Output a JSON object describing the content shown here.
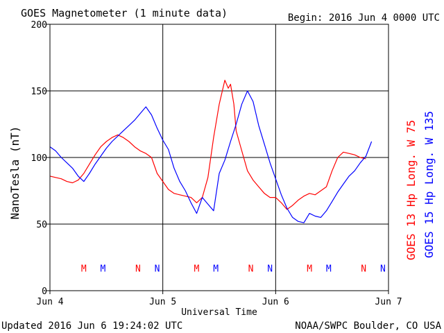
{
  "colors": {
    "goes13": "#ff0000",
    "goes15": "#0000ff",
    "axis": "#000000"
  },
  "chart_data": {
    "type": "line",
    "title": "GOES Magnetometer (1 minute data)",
    "begin_label": "Begin:  2016 Jun 4 0000 UTC",
    "xlabel": "Universal Time",
    "ylabel": "NanoTesla (nT)",
    "ylim": [
      0,
      200
    ],
    "yticks": [
      0,
      50,
      100,
      150,
      200
    ],
    "xlim_days": [
      0,
      3
    ],
    "xticks": [
      {
        "day": 0,
        "label": "Jun 4"
      },
      {
        "day": 1,
        "label": "Jun 5"
      },
      {
        "day": 2,
        "label": "Jun 6"
      },
      {
        "day": 3,
        "label": "Jun 7"
      }
    ],
    "grid": true,
    "legend": "right-vertical",
    "series": [
      {
        "name": "GOES 13 Hp  Long. W 75",
        "color": "#ff0000",
        "x": [
          0,
          0.05,
          0.1,
          0.15,
          0.2,
          0.25,
          0.3,
          0.35,
          0.4,
          0.45,
          0.5,
          0.55,
          0.6,
          0.65,
          0.7,
          0.75,
          0.8,
          0.85,
          0.9,
          0.95,
          1.0,
          1.05,
          1.1,
          1.15,
          1.2,
          1.25,
          1.3,
          1.35,
          1.4,
          1.45,
          1.5,
          1.55,
          1.58,
          1.6,
          1.63,
          1.65,
          1.7,
          1.75,
          1.8,
          1.85,
          1.9,
          1.95,
          2.0,
          2.05,
          2.1,
          2.15,
          2.2,
          2.25,
          2.3,
          2.35,
          2.4,
          2.45,
          2.5,
          2.55,
          2.6,
          2.65,
          2.7,
          2.75,
          2.8
        ],
        "y": [
          86,
          85,
          84,
          82,
          81,
          83,
          88,
          95,
          102,
          108,
          112,
          115,
          117,
          115,
          112,
          108,
          105,
          103,
          100,
          88,
          82,
          76,
          73,
          72,
          71,
          70,
          66,
          70,
          85,
          115,
          140,
          158,
          152,
          155,
          140,
          120,
          105,
          90,
          83,
          78,
          73,
          70,
          70,
          66,
          61,
          64,
          68,
          71,
          73,
          72,
          75,
          78,
          90,
          100,
          104,
          103,
          102,
          100,
          99
        ]
      },
      {
        "name": "GOES 15 Hp  Long. W 135",
        "color": "#0000ff",
        "x": [
          0,
          0.05,
          0.1,
          0.15,
          0.2,
          0.25,
          0.3,
          0.35,
          0.4,
          0.45,
          0.5,
          0.55,
          0.6,
          0.65,
          0.7,
          0.75,
          0.8,
          0.85,
          0.9,
          0.95,
          1.0,
          1.05,
          1.1,
          1.15,
          1.2,
          1.25,
          1.3,
          1.35,
          1.4,
          1.45,
          1.5,
          1.55,
          1.6,
          1.65,
          1.7,
          1.75,
          1.8,
          1.85,
          1.9,
          1.95,
          2.0,
          2.05,
          2.1,
          2.15,
          2.2,
          2.25,
          2.3,
          2.35,
          2.4,
          2.45,
          2.5,
          2.55,
          2.6,
          2.65,
          2.7,
          2.75,
          2.8,
          2.85
        ],
        "y": [
          108,
          105,
          100,
          96,
          92,
          86,
          82,
          88,
          95,
          101,
          107,
          112,
          116,
          120,
          124,
          128,
          133,
          138,
          132,
          122,
          113,
          106,
          92,
          82,
          75,
          66,
          58,
          70,
          65,
          60,
          88,
          98,
          112,
          125,
          140,
          150,
          142,
          124,
          110,
          96,
          84,
          72,
          62,
          55,
          52,
          51,
          58,
          56,
          55,
          60,
          67,
          74,
          80,
          86,
          90,
          96,
          101,
          112
        ]
      }
    ],
    "markers": [
      {
        "day": 0.3,
        "label": "M",
        "color": "#ff0000"
      },
      {
        "day": 0.47,
        "label": "M",
        "color": "#0000ff"
      },
      {
        "day": 0.78,
        "label": "N",
        "color": "#ff0000"
      },
      {
        "day": 0.95,
        "label": "N",
        "color": "#0000ff"
      },
      {
        "day": 1.3,
        "label": "M",
        "color": "#ff0000"
      },
      {
        "day": 1.47,
        "label": "M",
        "color": "#0000ff"
      },
      {
        "day": 1.78,
        "label": "N",
        "color": "#ff0000"
      },
      {
        "day": 1.95,
        "label": "N",
        "color": "#0000ff"
      },
      {
        "day": 2.3,
        "label": "M",
        "color": "#ff0000"
      },
      {
        "day": 2.47,
        "label": "M",
        "color": "#0000ff"
      },
      {
        "day": 2.78,
        "label": "N",
        "color": "#ff0000"
      },
      {
        "day": 2.95,
        "label": "N",
        "color": "#0000ff"
      }
    ],
    "marker_value": 17
  },
  "footer": {
    "updated": "Updated 2016 Jun  6 19:24:02 UTC",
    "credit": "NOAA/SWPC Boulder, CO USA"
  }
}
